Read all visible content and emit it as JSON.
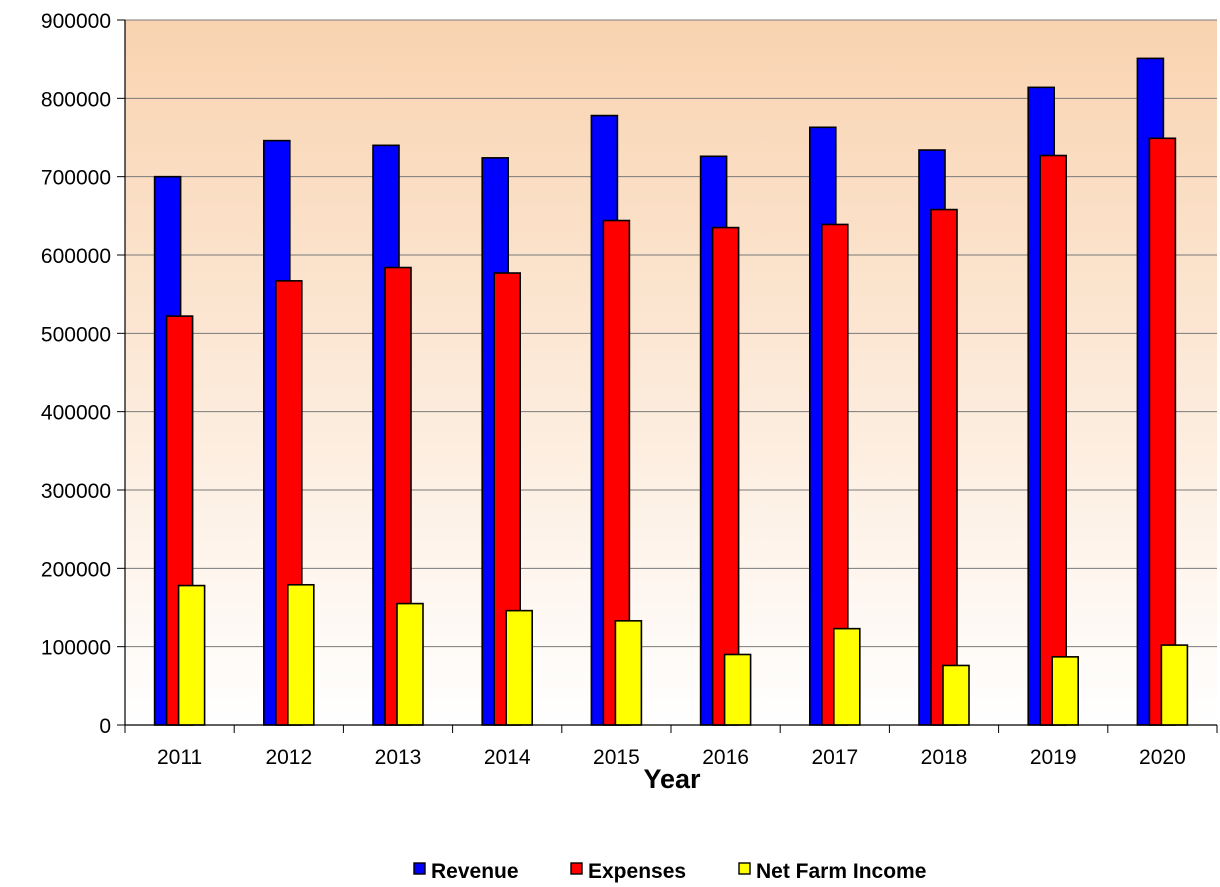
{
  "chart_data": {
    "type": "bar",
    "title": "",
    "xlabel": "Year",
    "ylabel": "",
    "ylim": [
      0,
      900000
    ],
    "yticks": [
      0,
      100000,
      200000,
      300000,
      400000,
      500000,
      600000,
      700000,
      800000,
      900000
    ],
    "categories": [
      "2011",
      "2012",
      "2013",
      "2014",
      "2015",
      "2016",
      "2017",
      "2018",
      "2019",
      "2020"
    ],
    "series": [
      {
        "name": "Revenue",
        "color": "#0000ff",
        "values": [
          700000,
          746000,
          740000,
          724000,
          778000,
          726000,
          763000,
          734000,
          814000,
          851000
        ]
      },
      {
        "name": "Expenses",
        "color": "#ff0000",
        "values": [
          522000,
          567000,
          584000,
          577000,
          644000,
          635000,
          639000,
          658000,
          727000,
          749000
        ]
      },
      {
        "name": "Net Farm Income",
        "color": "#ffff00",
        "values": [
          178000,
          179000,
          155000,
          146000,
          133000,
          90000,
          123000,
          76000,
          87000,
          102000
        ]
      }
    ],
    "grid": true,
    "legend_position": "bottom",
    "background": {
      "top": "#f9d3b0",
      "bottom": "#ffffff"
    }
  }
}
